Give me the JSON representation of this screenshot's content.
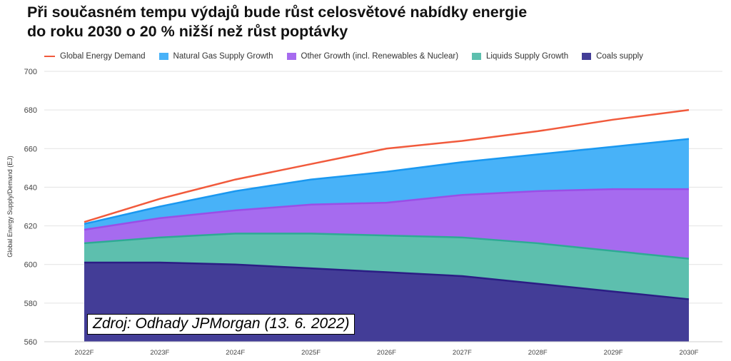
{
  "title_lines": [
    "Při současném tempu výdajů bude růst celosvětové nabídky energie",
    "do roku 2030 o 20 % nižší než růst poptávky"
  ],
  "source_note": "Zdroj: Odhady JPMorgan (13. 6. 2022)",
  "chart_data": {
    "type": "area",
    "stacked": true,
    "x": [
      "2022F",
      "2023F",
      "2024F",
      "2025F",
      "2026F",
      "2027F",
      "2028F",
      "2029F",
      "2030F"
    ],
    "ylabel": "Global Energy Supply/Demand (EJ)",
    "ylim": [
      560,
      700
    ],
    "yticks": [
      560,
      580,
      600,
      620,
      640,
      660,
      680,
      700
    ],
    "grid": true,
    "legend_position": "top",
    "series": [
      {
        "name": "Coals supply",
        "kind": "area",
        "color": "#2b1d84",
        "fill": "#433d97",
        "values": [
          601,
          601,
          600,
          598,
          596,
          594,
          590,
          586,
          582
        ]
      },
      {
        "name": "Liquids Supply Growth",
        "kind": "area",
        "color": "#2eaa94",
        "fill": "#5dbfae",
        "values": [
          611,
          614,
          616,
          616,
          615,
          614,
          611,
          607,
          603
        ]
      },
      {
        "name": "Other Growth (incl. Renewables & Nuclear)",
        "kind": "area",
        "color": "#9a4ee6",
        "fill": "#a66bef",
        "values": [
          618,
          624,
          628,
          631,
          632,
          636,
          638,
          639,
          639
        ]
      },
      {
        "name": "Natural Gas Supply Growth",
        "kind": "area",
        "color": "#1a98f0",
        "fill": "#48b2f8",
        "values": [
          621,
          630,
          638,
          644,
          648,
          653,
          657,
          661,
          665
        ]
      },
      {
        "name": "Global Energy Demand",
        "kind": "line",
        "color": "#f15a3c",
        "values": [
          622,
          634,
          644,
          652,
          660,
          664,
          669,
          675,
          680
        ]
      }
    ],
    "legend_order": [
      "Global Energy Demand",
      "Natural Gas Supply Growth",
      "Other Growth (incl. Renewables & Nuclear)",
      "Liquids Supply Growth",
      "Coals supply"
    ]
  }
}
